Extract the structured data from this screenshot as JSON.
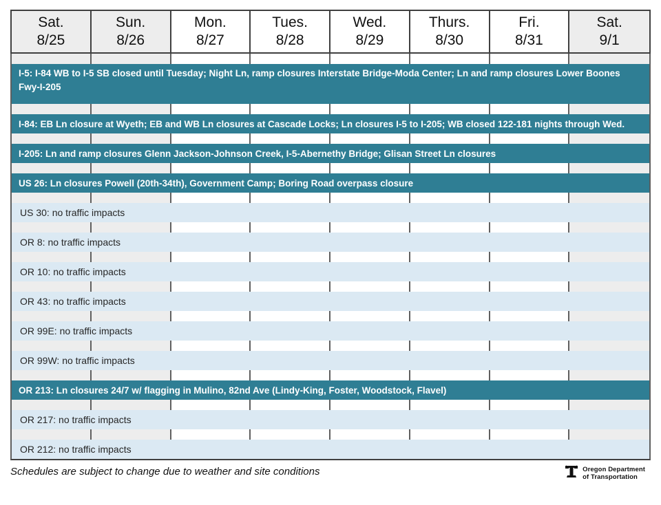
{
  "colors": {
    "impact_banner": "#2F7E94",
    "no_impact_row": "#DBE9F3",
    "weekend_shade": "#EDEDED",
    "grid_divider": "#5F5F5F",
    "header_border": "#3F3F3F"
  },
  "days": [
    {
      "label": "Sat.",
      "date": "8/25",
      "weekend": true
    },
    {
      "label": "Sun.",
      "date": "8/26",
      "weekend": true
    },
    {
      "label": "Mon.",
      "date": "8/27",
      "weekend": false
    },
    {
      "label": "Tues.",
      "date": "8/28",
      "weekend": false
    },
    {
      "label": "Wed.",
      "date": "8/29",
      "weekend": false
    },
    {
      "label": "Thurs.",
      "date": "8/30",
      "weekend": false
    },
    {
      "label": "Fri.",
      "date": "8/31",
      "weekend": false
    },
    {
      "label": "Sat.",
      "date": "9/1",
      "weekend": true
    }
  ],
  "routes": [
    {
      "name": "I-5",
      "impact": true,
      "text": "I-5: I-84 WB to I-5 SB closed until Tuesday; Night Ln, ramp closures Interstate Bridge-Moda Center; Ln and ramp closures Lower Boones Fwy-I-205"
    },
    {
      "name": "I-84",
      "impact": true,
      "text": "I-84: EB Ln closure at Wyeth; EB and WB Ln closures at Cascade Locks; Ln closures I-5 to I-205; WB closed 122-181 nights through Wed."
    },
    {
      "name": "I-205",
      "impact": true,
      "text": "I-205: Ln and ramp closures Glenn Jackson-Johnson Creek, I-5-Abernethy Bridge; Glisan Street Ln closures"
    },
    {
      "name": "US 26",
      "impact": true,
      "text": "US 26: Ln closures Powell (20th-34th), Government Camp; Boring Road overpass closure"
    },
    {
      "name": "US 30",
      "impact": false,
      "text": "US 30: no traffic impacts"
    },
    {
      "name": "OR 8",
      "impact": false,
      "text": "OR 8: no traffic impacts"
    },
    {
      "name": "OR 10",
      "impact": false,
      "text": "OR 10: no traffic impacts"
    },
    {
      "name": "OR 43",
      "impact": false,
      "text": "OR 43: no traffic impacts"
    },
    {
      "name": "OR 99E",
      "impact": false,
      "text": "OR 99E: no traffic impacts"
    },
    {
      "name": "OR 99W",
      "impact": false,
      "text": "OR 99W: no traffic impacts"
    },
    {
      "name": "OR 213",
      "impact": true,
      "text": "OR 213: Ln closures 24/7 w/ flagging in Mulino, 82nd Ave (Lindy-King, Foster, Woodstock, Flavel)"
    },
    {
      "name": "OR 217",
      "impact": false,
      "text": "OR 217: no traffic impacts"
    },
    {
      "name": "OR 212",
      "impact": false,
      "text": "OR 212: no traffic impacts"
    }
  ],
  "footer": {
    "note": "Schedules are subject to change due to weather and site conditions",
    "logo_line1": "Oregon Department",
    "logo_line2": "of Transportation"
  }
}
